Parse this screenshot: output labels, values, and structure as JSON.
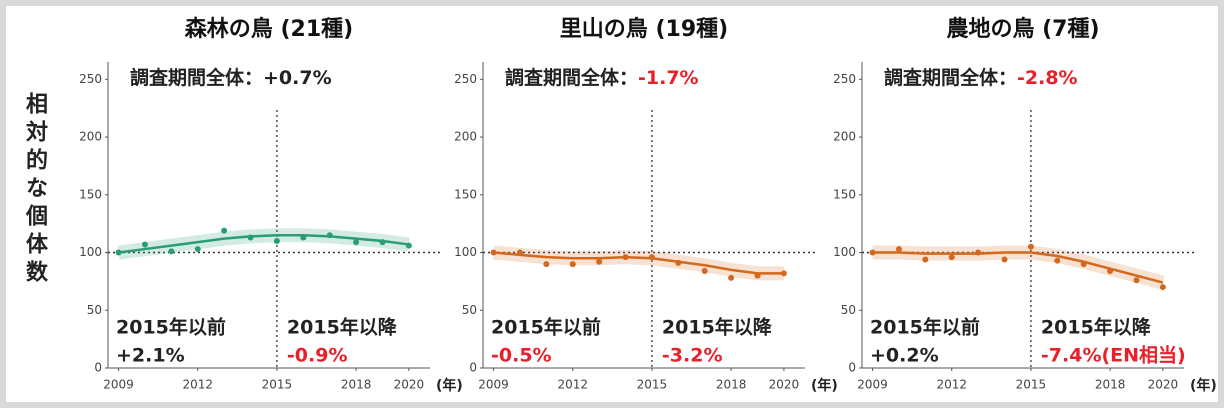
{
  "chart_data": [
    {
      "type": "line",
      "title": "森林の鳥 (21種)",
      "ylabel": "相対的な個体数",
      "xlabel": "(年)",
      "x": [
        2009,
        2010,
        2011,
        2012,
        2013,
        2014,
        2015,
        2016,
        2017,
        2018,
        2019,
        2020
      ],
      "series": [
        {
          "color": "#2a9d78",
          "style": "points",
          "values": [
            100,
            107,
            101,
            103,
            119,
            113,
            110,
            113,
            115,
            109,
            109,
            106
          ]
        },
        {
          "color": "#2a9d78",
          "style": "line",
          "values": [
            100,
            103,
            106,
            109,
            112,
            114,
            115,
            115,
            114,
            112,
            110,
            107
          ]
        }
      ],
      "xlim": [
        2008.6,
        2020.8
      ],
      "xticks": [
        2009,
        2012,
        2015,
        2018,
        2020
      ],
      "ylim": [
        0,
        265
      ],
      "yticks": [
        0,
        50,
        100,
        150,
        200,
        250
      ],
      "hline": 100,
      "vline": 2015,
      "annotations": {
        "overall_label": "調査期間全体：",
        "overall_value": "+0.7%",
        "overall_color": "#222",
        "before_label": "2015年以前",
        "before_value": "+2.1%",
        "before_color": "#222",
        "after_label": "2015年以降",
        "after_value": "-0.9%",
        "after_color": "#e8202a"
      }
    },
    {
      "type": "line",
      "title": "里山の鳥 (19種)",
      "xlabel": "(年)",
      "x": [
        2009,
        2010,
        2011,
        2012,
        2013,
        2014,
        2015,
        2016,
        2017,
        2018,
        2019,
        2020
      ],
      "series": [
        {
          "color": "#d2691e",
          "style": "points",
          "values": [
            100,
            100,
            90,
            90,
            92,
            96,
            96,
            91,
            84,
            78,
            80,
            82
          ]
        },
        {
          "color": "#d2691e",
          "style": "line",
          "values": [
            100,
            98,
            96,
            95,
            95,
            96,
            95,
            92,
            89,
            85,
            82,
            82
          ]
        }
      ],
      "xlim": [
        2008.6,
        2020.8
      ],
      "xticks": [
        2009,
        2012,
        2015,
        2018,
        2020
      ],
      "ylim": [
        0,
        265
      ],
      "yticks": [
        0,
        50,
        100,
        150,
        200,
        250
      ],
      "hline": 100,
      "vline": 2015,
      "annotations": {
        "overall_label": "調査期間全体：",
        "overall_value": "-1.7%",
        "overall_color": "#e8202a",
        "before_label": "2015年以前",
        "before_value": "-0.5%",
        "before_color": "#e8202a",
        "after_label": "2015年以降",
        "after_value": "-3.2%",
        "after_color": "#e8202a"
      }
    },
    {
      "type": "line",
      "title": "農地の鳥 (7種)",
      "xlabel": "(年)",
      "x": [
        2009,
        2010,
        2011,
        2012,
        2013,
        2014,
        2015,
        2016,
        2017,
        2018,
        2019,
        2020
      ],
      "series": [
        {
          "color": "#d2691e",
          "style": "points",
          "values": [
            100,
            103,
            94,
            96,
            100,
            94,
            105,
            93,
            90,
            84,
            76,
            70
          ]
        },
        {
          "color": "#d2691e",
          "style": "line",
          "values": [
            100,
            100,
            99,
            99,
            99,
            100,
            100,
            97,
            92,
            86,
            80,
            74
          ]
        }
      ],
      "xlim": [
        2008.6,
        2020.8
      ],
      "xticks": [
        2009,
        2012,
        2015,
        2018,
        2020
      ],
      "ylim": [
        0,
        265
      ],
      "yticks": [
        0,
        50,
        100,
        150,
        200,
        250
      ],
      "hline": 100,
      "vline": 2015,
      "annotations": {
        "overall_label": "調査期間全体：",
        "overall_value": "-2.8%",
        "overall_color": "#e8202a",
        "before_label": "2015年以前",
        "before_value": "+0.2%",
        "before_color": "#222",
        "after_label": "2015年以降",
        "after_value": "-7.4%(EN相当)",
        "after_color": "#e8202a"
      }
    }
  ]
}
